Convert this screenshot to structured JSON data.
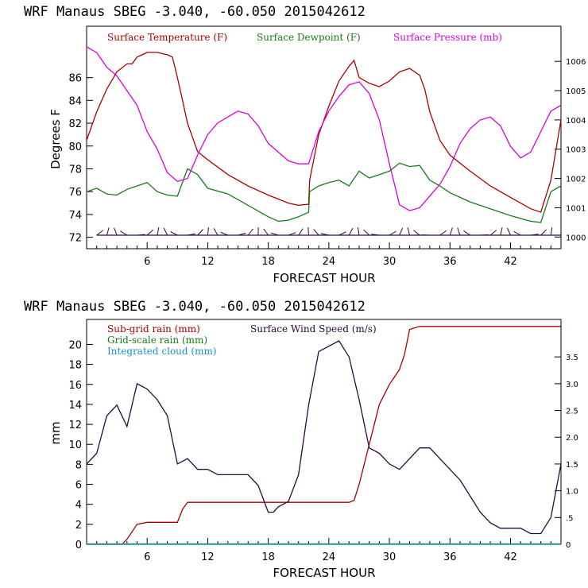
{
  "chart_data": [
    {
      "type": "line",
      "title": "WRF   Manaus SBEG   -3.040, -60.050  2015042612",
      "xlabel": "FORECAST HOUR",
      "ylabel": "Degrees F",
      "xlim": [
        0,
        47
      ],
      "ylim": [
        71,
        90.5
      ],
      "y2lim": [
        999.6,
        1007.2
      ],
      "xticks": [
        "6",
        "12",
        "18",
        "24",
        "30",
        "36",
        "42"
      ],
      "xtick_values": [
        6,
        12,
        18,
        24,
        30,
        36,
        42
      ],
      "yticks": [
        "72",
        "74",
        "76",
        "78",
        "80",
        "82",
        "84",
        "86"
      ],
      "y2ticks": [
        "1000",
        "1001",
        "1002",
        "1003",
        "1004",
        "1005",
        "1006"
      ],
      "legend": [
        "Surface Temperature (F)",
        "Surface Dewpoint (F)",
        "Surface Pressure (mb)"
      ],
      "legend_position": "top",
      "series": [
        {
          "name": "Surface Temperature (F)",
          "color": "#aa0000",
          "axis": "left",
          "x": [
            0,
            1,
            2,
            3,
            4,
            4.5,
            5,
            5.5,
            6,
            7,
            8,
            8.5,
            9,
            9.5,
            10,
            11,
            12,
            14,
            16,
            18,
            20,
            21,
            22,
            22.1,
            23,
            24,
            25,
            26,
            26.5,
            27,
            28,
            29,
            30,
            31,
            32,
            33,
            33.5,
            34,
            35,
            36,
            38,
            40,
            42,
            44,
            45,
            46,
            47
          ],
          "y": [
            80.5,
            83,
            85,
            86.5,
            87.2,
            87.2,
            87.8,
            88,
            88.2,
            88.2,
            88,
            87.8,
            86,
            84,
            82,
            79.5,
            78.8,
            77.5,
            76.5,
            75.7,
            75,
            74.8,
            74.9,
            77,
            81,
            83.5,
            85.7,
            87,
            87.5,
            86,
            85.5,
            85.2,
            85.7,
            86.5,
            86.8,
            86.2,
            85,
            83,
            80.5,
            79.2,
            77.8,
            76.5,
            75.5,
            74.5,
            74.2,
            77,
            82.3
          ]
        },
        {
          "name": "Surface Dewpoint (F)",
          "color": "#1a7a1a",
          "axis": "left",
          "x": [
            0,
            1,
            2,
            3,
            4,
            5,
            6,
            7,
            8,
            9,
            10,
            11,
            12,
            14,
            16,
            18,
            19,
            20,
            21,
            22,
            22.1,
            23,
            24,
            25,
            26,
            27,
            28,
            29,
            30,
            31,
            32,
            33,
            34,
            35,
            36,
            37,
            38,
            40,
            42,
            44,
            45,
            46,
            47
          ],
          "y": [
            76,
            76.3,
            75.8,
            75.7,
            76.2,
            76.5,
            76.8,
            76,
            75.7,
            75.6,
            78,
            77.5,
            76.3,
            75.8,
            74.8,
            73.8,
            73.4,
            73.5,
            73.8,
            74.2,
            76,
            76.5,
            76.8,
            77,
            76.5,
            77.8,
            77.2,
            77.5,
            77.8,
            78.5,
            78.2,
            78.3,
            77,
            76.5,
            75.9,
            75.5,
            75.1,
            74.5,
            73.9,
            73.4,
            73.3,
            76,
            76.5
          ]
        },
        {
          "name": "Surface Pressure (mb)",
          "color": "#dd00dd",
          "axis": "right",
          "x": [
            0,
            1,
            2,
            3,
            4,
            5,
            6,
            7,
            8,
            9,
            10,
            11,
            12,
            13,
            14,
            15,
            16,
            17,
            18,
            19,
            20,
            21,
            22,
            23,
            24,
            25,
            26,
            27,
            28,
            29,
            30,
            31,
            32,
            33,
            34,
            35,
            36,
            37,
            38,
            39,
            40,
            41,
            42,
            43,
            44,
            45,
            46,
            47
          ],
          "y": [
            1006.5,
            1006.3,
            1005.8,
            1005.5,
            1005,
            1004.5,
            1003.6,
            1003,
            1002.2,
            1001.9,
            1002,
            1002.8,
            1003.5,
            1003.9,
            1004.1,
            1004.3,
            1004.2,
            1003.8,
            1003.2,
            1002.9,
            1002.6,
            1002.5,
            1002.5,
            1003.6,
            1004.3,
            1004.8,
            1005.2,
            1005.3,
            1004.9,
            1004,
            1002.5,
            1001.1,
            1000.9,
            1001,
            1001.4,
            1001.8,
            1002.4,
            1003.2,
            1003.7,
            1004.0,
            1004.1,
            1003.8,
            1003.1,
            1002.7,
            1002.9,
            1003.6,
            1004.3,
            1004.5
          ]
        }
      ]
    },
    {
      "type": "line",
      "title": "WRF   Manaus SBEG   -3.040, -60.050  2015042612",
      "xlabel": "FORECAST HOUR",
      "ylabel": "mm",
      "xlim": [
        0,
        47
      ],
      "ylim": [
        0,
        22.5
      ],
      "y2lim": [
        0,
        4.2
      ],
      "xticks": [
        "6",
        "12",
        "18",
        "24",
        "30",
        "36",
        "42"
      ],
      "xtick_values": [
        6,
        12,
        18,
        24,
        30,
        36,
        42
      ],
      "yticks": [
        "0",
        "2",
        "4",
        "6",
        "8",
        "10",
        "12",
        "14",
        "16",
        "18",
        "20"
      ],
      "ytick_values": [
        0,
        2,
        4,
        6,
        8,
        10,
        12,
        14,
        16,
        18,
        20
      ],
      "y2ticks": [
        "0",
        ".5",
        "1.0",
        "1.5",
        "2.0",
        "2.5",
        "3.0",
        "3.5"
      ],
      "y2tick_values": [
        0,
        0.5,
        1.0,
        1.5,
        2.0,
        2.5,
        3.0,
        3.5
      ],
      "legend": [
        "Sub-grid rain (mm)",
        "Grid-scale rain (mm)",
        "Integrated cloud (mm)",
        "Surface Wind Speed (m/s)"
      ],
      "legend_position": "top",
      "series": [
        {
          "name": "Sub-grid rain (mm)",
          "color": "#aa0000",
          "axis": "left",
          "x": [
            0,
            3.5,
            4,
            5,
            6,
            7,
            8,
            9,
            9.5,
            10,
            11,
            12,
            14,
            16,
            18,
            20,
            22,
            24,
            26,
            26.5,
            27,
            28,
            29,
            30,
            31,
            31.5,
            32,
            33,
            36,
            40,
            44,
            47
          ],
          "y": [
            0,
            0,
            0.5,
            2,
            2.2,
            2.2,
            2.2,
            2.2,
            3.5,
            4.2,
            4.2,
            4.2,
            4.2,
            4.2,
            4.2,
            4.2,
            4.2,
            4.2,
            4.2,
            4.4,
            6,
            10,
            14,
            16,
            17.5,
            19,
            21.5,
            21.8,
            21.8,
            21.8,
            21.8,
            21.8
          ]
        },
        {
          "name": "Grid-scale rain (mm)",
          "color": "#1a7a1a",
          "axis": "left",
          "x": [
            0,
            47
          ],
          "y": [
            0,
            0
          ]
        },
        {
          "name": "Integrated cloud (mm)",
          "color": "#1a8fd0",
          "axis": "left",
          "x": [
            0,
            47
          ],
          "y": [
            0.05,
            0.05
          ]
        },
        {
          "name": "Surface Wind Speed (m/s)",
          "color": "#2a0a3a",
          "axis": "right",
          "x": [
            0,
            1,
            2,
            3,
            4,
            5,
            6,
            7,
            8,
            9,
            10,
            11,
            12,
            13,
            14,
            15,
            16,
            17,
            18,
            18.5,
            19,
            20,
            21,
            22,
            23,
            24,
            25,
            26,
            27,
            28,
            29,
            30,
            31,
            32,
            33,
            34,
            35,
            36,
            37,
            38,
            39,
            40,
            41,
            42,
            43,
            44,
            45,
            46,
            47
          ],
          "y": [
            1.5,
            1.7,
            2.4,
            2.6,
            2.2,
            3.0,
            2.9,
            2.7,
            2.4,
            1.5,
            1.6,
            1.4,
            1.4,
            1.3,
            1.3,
            1.3,
            1.3,
            1.1,
            0.6,
            0.6,
            0.7,
            0.8,
            1.3,
            2.6,
            3.6,
            3.7,
            3.8,
            3.5,
            2.7,
            1.8,
            1.7,
            1.5,
            1.4,
            1.6,
            1.8,
            1.8,
            1.6,
            1.4,
            1.2,
            0.9,
            0.6,
            0.4,
            0.3,
            0.3,
            0.3,
            0.2,
            0.2,
            0.5,
            1.5
          ]
        }
      ]
    }
  ]
}
